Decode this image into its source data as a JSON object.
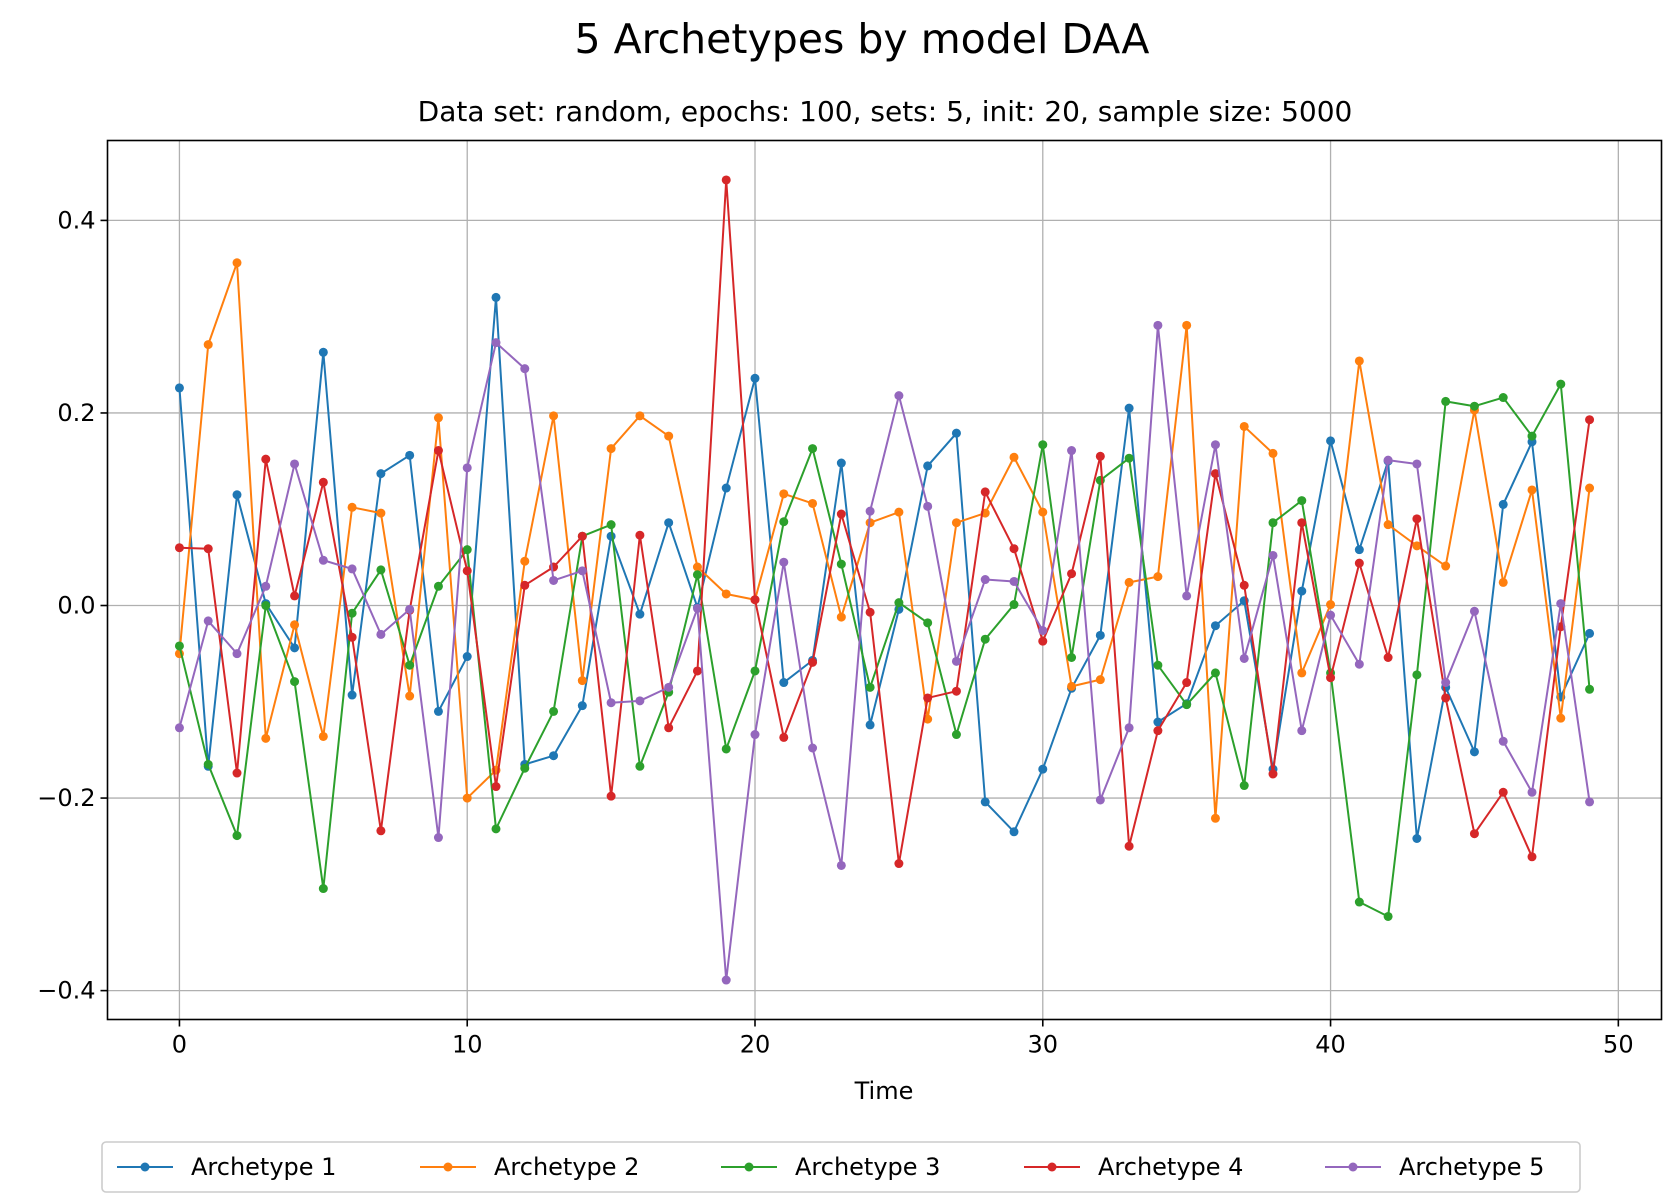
{
  "chart_data": {
    "type": "line",
    "title": "5 Archetypes by model DAA",
    "subtitle": "Data set: random, epochs: 100, sets: 5, init: 20, sample size: 5000",
    "xlabel": "Time",
    "ylabel": "",
    "xlim": [
      -2.5,
      51.5
    ],
    "ylim": [
      -0.43,
      0.483
    ],
    "xticks": [
      0,
      10,
      20,
      30,
      40,
      50
    ],
    "yticks": [
      -0.4,
      -0.2,
      0.0,
      0.2,
      0.4
    ],
    "ytick_labels": [
      "−0.4",
      "−0.2",
      "0.0",
      "0.2",
      "0.4"
    ],
    "grid": true,
    "legend": "bottom-center",
    "x": [
      0,
      1,
      2,
      3,
      4,
      5,
      6,
      7,
      8,
      9,
      10,
      11,
      12,
      13,
      14,
      15,
      16,
      17,
      18,
      19,
      20,
      21,
      22,
      23,
      24,
      25,
      26,
      27,
      28,
      29,
      30,
      31,
      32,
      33,
      34,
      35,
      36,
      37,
      38,
      39,
      40,
      41,
      42,
      43,
      44,
      45,
      46,
      47,
      48,
      49
    ],
    "series": [
      {
        "name": "Archetype 1",
        "color": "#1f77b4",
        "values": [
          0.226,
          -0.167,
          0.115,
          0.002,
          -0.044,
          0.263,
          -0.093,
          0.137,
          0.156,
          -0.11,
          -0.053,
          0.32,
          -0.165,
          -0.156,
          -0.104,
          0.072,
          -0.009,
          0.086,
          -0.002,
          0.122,
          0.236,
          -0.08,
          -0.057,
          0.148,
          -0.124,
          -0.004,
          0.145,
          0.179,
          -0.204,
          -0.235,
          -0.17,
          -0.086,
          -0.031,
          0.205,
          -0.121,
          -0.102,
          -0.021,
          0.005,
          -0.17,
          0.015,
          0.171,
          0.058,
          0.15,
          -0.242,
          -0.085,
          -0.152,
          0.105,
          0.17,
          -0.095,
          -0.029
        ]
      },
      {
        "name": "Archetype 2",
        "color": "#ff7f0e",
        "values": [
          -0.05,
          0.271,
          0.356,
          -0.138,
          -0.02,
          -0.136,
          0.102,
          0.096,
          -0.094,
          0.195,
          -0.2,
          -0.171,
          0.046,
          0.197,
          -0.078,
          0.163,
          0.197,
          0.176,
          0.04,
          0.012,
          0.006,
          0.116,
          0.106,
          -0.012,
          0.086,
          0.097,
          -0.118,
          0.086,
          0.096,
          0.154,
          0.097,
          -0.084,
          -0.077,
          0.024,
          0.03,
          0.291,
          -0.221,
          0.186,
          0.158,
          -0.07,
          0.001,
          0.254,
          0.084,
          0.062,
          0.041,
          0.203,
          0.024,
          0.12,
          -0.117,
          0.122
        ]
      },
      {
        "name": "Archetype 3",
        "color": "#2ca02c",
        "values": [
          -0.042,
          -0.165,
          -0.239,
          0.0,
          -0.079,
          -0.294,
          -0.008,
          0.037,
          -0.062,
          0.02,
          0.058,
          -0.232,
          -0.169,
          -0.11,
          0.072,
          0.084,
          -0.167,
          -0.09,
          0.032,
          -0.149,
          -0.068,
          0.087,
          0.163,
          0.043,
          -0.085,
          0.003,
          -0.018,
          -0.134,
          -0.035,
          0.001,
          0.167,
          -0.054,
          0.13,
          0.153,
          -0.062,
          -0.103,
          -0.07,
          -0.187,
          0.086,
          0.109,
          -0.07,
          -0.308,
          -0.323,
          -0.072,
          0.212,
          0.207,
          0.216,
          0.176,
          0.23,
          -0.087
        ]
      },
      {
        "name": "Archetype 4",
        "color": "#d62728",
        "values": [
          0.06,
          0.059,
          -0.174,
          0.152,
          0.01,
          0.128,
          -0.033,
          -0.234,
          -0.005,
          0.161,
          0.036,
          -0.188,
          0.021,
          0.04,
          0.072,
          -0.198,
          0.073,
          -0.127,
          -0.068,
          0.442,
          0.006,
          -0.137,
          -0.059,
          0.095,
          -0.007,
          -0.268,
          -0.096,
          -0.089,
          0.118,
          0.059,
          -0.037,
          0.033,
          0.155,
          -0.25,
          -0.13,
          -0.08,
          0.137,
          0.021,
          -0.175,
          0.086,
          -0.075,
          0.044,
          -0.054,
          0.09,
          -0.096,
          -0.237,
          -0.194,
          -0.261,
          -0.022,
          0.193
        ]
      },
      {
        "name": "Archetype 5",
        "color": "#9467bd",
        "values": [
          -0.127,
          -0.016,
          -0.05,
          0.02,
          0.147,
          0.047,
          0.038,
          -0.03,
          -0.004,
          -0.241,
          0.143,
          0.273,
          0.246,
          0.026,
          0.036,
          -0.101,
          -0.099,
          -0.085,
          -0.003,
          -0.389,
          -0.134,
          0.045,
          -0.148,
          -0.27,
          0.098,
          0.218,
          0.103,
          -0.058,
          0.027,
          0.025,
          -0.026,
          0.161,
          -0.202,
          -0.127,
          0.291,
          0.01,
          0.167,
          -0.055,
          0.052,
          -0.13,
          -0.01,
          -0.061,
          0.151,
          0.147,
          -0.08,
          -0.006,
          -0.141,
          -0.194,
          0.002,
          -0.204
        ]
      }
    ]
  }
}
